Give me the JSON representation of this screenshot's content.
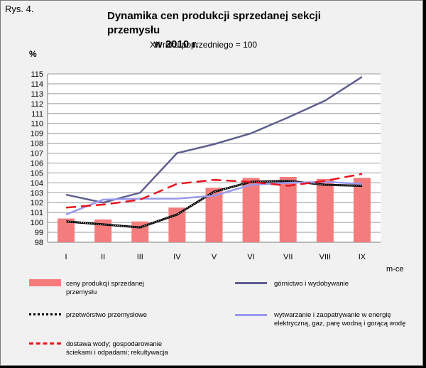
{
  "figure_label": "Rys. 4.",
  "chart_data": {
    "type": "bar",
    "title_line1": "Dynamika cen produkcji sprzedanej sekcji przemysłu",
    "title_line2": "w 2010 r.",
    "subtitle": "XII roku poprzedniego = 100",
    "ylabel": "%",
    "x_unit": "m-ce",
    "ylim": [
      98,
      115
    ],
    "yticks": [
      98,
      99,
      100,
      101,
      102,
      103,
      104,
      105,
      106,
      107,
      108,
      109,
      110,
      111,
      112,
      113,
      114,
      115
    ],
    "categories": [
      "I",
      "II",
      "III",
      "IV",
      "V",
      "VI",
      "VII",
      "VIII",
      "IX"
    ],
    "grid": true,
    "series": [
      {
        "name": "ceny produkcji sprzedanej przemysłu",
        "kind": "bar",
        "color": "#f47c7c",
        "values": [
          100.4,
          100.3,
          100.1,
          101.5,
          103.5,
          104.5,
          104.6,
          104.4,
          104.5
        ]
      },
      {
        "name": "górnictwo i wydobywanie",
        "kind": "line",
        "style": "solid",
        "color": "#5f5f8f",
        "values": [
          102.8,
          102.0,
          103.0,
          107.0,
          107.9,
          109.0,
          110.6,
          112.3,
          114.7
        ]
      },
      {
        "name": "przetwórstwo przemysłowe",
        "kind": "line",
        "style": "dotted-black",
        "color": "#000000",
        "values": [
          100.1,
          99.8,
          99.5,
          100.8,
          103.1,
          104.1,
          104.2,
          103.8,
          103.7
        ]
      },
      {
        "name": "wytwarzanie  i zaopatrywanie  w energię elektryczną,  gaz, parę wodną i gorącą wodę",
        "kind": "line",
        "style": "solid",
        "color": "#9999ee",
        "values": [
          100.8,
          102.3,
          102.4,
          102.4,
          102.7,
          103.8,
          104.0,
          104.1,
          103.9
        ]
      },
      {
        "name": "dostawa wody; gospodarowanie ściekami i odpadami; rekultywacja",
        "kind": "line",
        "style": "dashed",
        "color": "#e8141e",
        "values": [
          101.5,
          101.8,
          102.3,
          103.9,
          104.3,
          104.1,
          103.7,
          104.2,
          104.9
        ]
      }
    ]
  }
}
